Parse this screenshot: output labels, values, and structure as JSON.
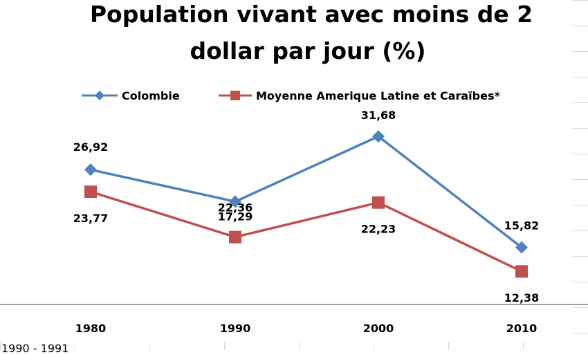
{
  "chart_data": {
    "type": "line",
    "title_lines": [
      "Population vivant avec moins de 2",
      "dollar par jour (%)"
    ],
    "categories": [
      "1980",
      "1990",
      "2000",
      "2010"
    ],
    "series": [
      {
        "name": "Colombie",
        "values": [
          26.92,
          22.36,
          31.68,
          15.82
        ],
        "labels": [
          "26,92",
          "22,36",
          "31,68",
          "15,82"
        ],
        "color": "#4f81bd",
        "marker": "diamond"
      },
      {
        "name": "Moyenne Amerique Latine et Caraïbes*",
        "values": [
          23.77,
          17.29,
          22.23,
          12.38
        ],
        "labels": [
          "23,77",
          "17,29",
          "22,23",
          "12,38"
        ],
        "color": "#c0504d",
        "marker": "square"
      }
    ],
    "legend_position": "top",
    "grid": true
  },
  "footer_fragment": "1990 - 1991"
}
